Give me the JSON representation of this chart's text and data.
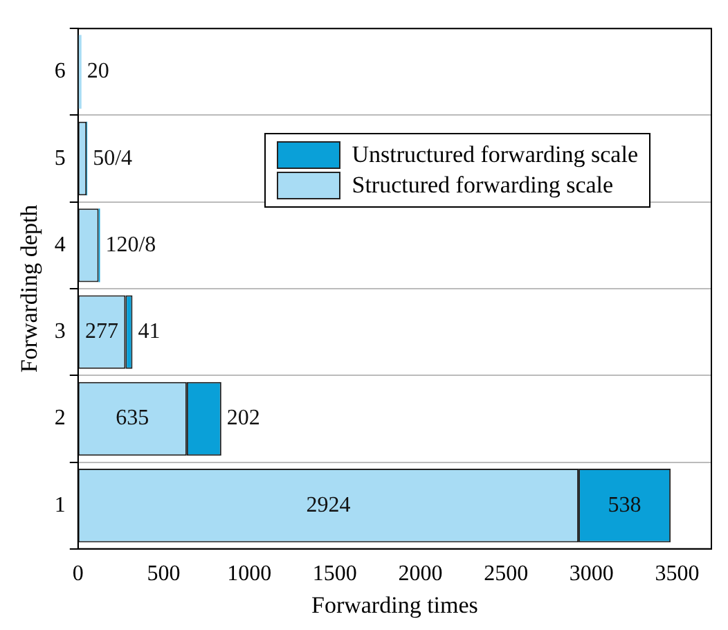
{
  "chart_data": {
    "type": "bar",
    "orientation": "horizontal",
    "stacked": true,
    "xlabel": "Forwarding times",
    "ylabel": "Forwarding depth",
    "categories": [
      "6",
      "5",
      "4",
      "3",
      "2",
      "1"
    ],
    "xlim": [
      0,
      3700
    ],
    "xticks": [
      0,
      500,
      1000,
      1500,
      2000,
      2500,
      3000,
      3500
    ],
    "grid": "y",
    "legend": "top right",
    "series": [
      {
        "name": "Structured forwarding scale",
        "color": "#a8dcf4",
        "values": [
          20,
          50,
          120,
          277,
          635,
          2924
        ],
        "value_labels": [
          "20",
          "50",
          "120",
          "277",
          "635",
          "2924"
        ]
      },
      {
        "name": "Unstructured forwarding scale",
        "color": "#0aa0d8",
        "values": [
          null,
          4,
          8,
          41,
          202,
          538
        ],
        "value_labels": [
          null,
          "/4",
          "/8",
          "41",
          "202",
          "538"
        ]
      }
    ]
  }
}
